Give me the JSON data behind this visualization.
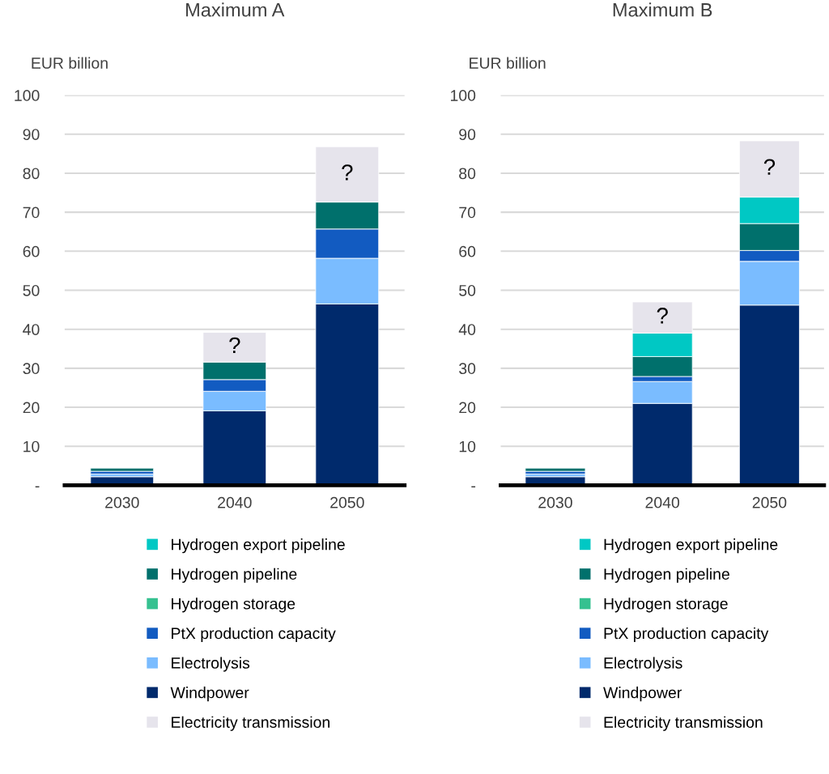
{
  "chart_data": [
    {
      "type": "bar",
      "stacked": true,
      "title": "Maximum A",
      "ylabel": "EUR billion",
      "categories": [
        "2030",
        "2040",
        "2050"
      ],
      "ylim": [
        0,
        100
      ],
      "yticks": [
        {
          "value": 0,
          "label": "-"
        },
        10,
        20,
        30,
        40,
        50,
        60,
        70,
        80,
        90,
        100
      ],
      "grid": "y",
      "legend": "bottom",
      "series": [
        {
          "name": "Windpower",
          "color": "#002a6c",
          "values": [
            2.2,
            19.1,
            46.5
          ]
        },
        {
          "name": "Electrolysis",
          "color": "#7abcff",
          "values": [
            0.7,
            5.0,
            11.7
          ]
        },
        {
          "name": "PtX production capacity",
          "color": "#125bc1",
          "values": [
            0.7,
            3.0,
            7.5
          ]
        },
        {
          "name": "Hydrogen storage",
          "color": "#36c190",
          "values": [
            null,
            null,
            null
          ]
        },
        {
          "name": "Hydrogen pipeline",
          "color": "#00706c",
          "values": [
            0.8,
            4.5,
            6.9
          ]
        },
        {
          "name": "Hydrogen export pipeline",
          "color": "#00c8c4",
          "values": [
            null,
            null,
            null
          ]
        },
        {
          "name": "Electricity transmission",
          "color": "#e6e4ec",
          "values": [
            null,
            7.6,
            14.2
          ]
        }
      ],
      "annotations": [
        "?",
        "?"
      ]
    },
    {
      "type": "bar",
      "stacked": true,
      "title": "Maximum B",
      "ylabel": "EUR billion",
      "categories": [
        "2030",
        "2040",
        "2050"
      ],
      "ylim": [
        0,
        100
      ],
      "yticks": [
        {
          "value": 0,
          "label": "-"
        },
        10,
        20,
        30,
        40,
        50,
        60,
        70,
        80,
        90,
        100
      ],
      "grid": "y",
      "legend": "bottom",
      "series": [
        {
          "name": "Windpower",
          "color": "#002a6c",
          "values": [
            2.2,
            21.0,
            46.2
          ]
        },
        {
          "name": "Electrolysis",
          "color": "#7abcff",
          "values": [
            0.7,
            5.6,
            11.2
          ]
        },
        {
          "name": "PtX production capacity",
          "color": "#125bc1",
          "values": [
            0.7,
            1.3,
            2.8
          ]
        },
        {
          "name": "Hydrogen storage",
          "color": "#36c190",
          "values": [
            null,
            null,
            null
          ]
        },
        {
          "name": "Hydrogen pipeline",
          "color": "#00706c",
          "values": [
            0.8,
            5.1,
            6.9
          ]
        },
        {
          "name": "Hydrogen export pipeline",
          "color": "#00c8c4",
          "values": [
            null,
            6.0,
            6.8
          ]
        },
        {
          "name": "Electricity transmission",
          "color": "#e6e4ec",
          "values": [
            null,
            8.0,
            14.4
          ]
        }
      ],
      "annotations": [
        "?",
        "?"
      ]
    }
  ]
}
